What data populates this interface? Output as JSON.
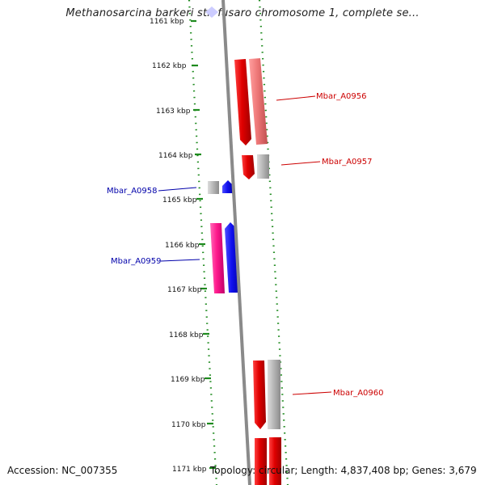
{
  "title": "Methanosarcina barkeri str. fusaro chromosome 1, complete se...",
  "accession": "Accession: NC_007355",
  "topology": "Topology: circular; Length: 4,837,408 bp; Genes: 3,679",
  "colors": {
    "backbone": "#8a8a8a",
    "ruler_dots": "#1e8a1e",
    "red": "#e00000",
    "light_red": "#ee7777",
    "gray": "#b4b4b4",
    "blue": "#1010ee",
    "pink": "#ff1a8c",
    "label_red": "#cc0000",
    "label_blue": "#0000aa"
  },
  "ticks": [
    "1161 kbp",
    "1162 kbp",
    "1163 kbp",
    "1164 kbp",
    "1165 kbp",
    "1166 kbp",
    "1167 kbp",
    "1168 kbp",
    "1169 kbp",
    "1170 kbp",
    "1171 kbp"
  ],
  "gene_labels": [
    {
      "text": "Mbar_A0956",
      "color": "label_red"
    },
    {
      "text": "Mbar_A0957",
      "color": "label_red"
    },
    {
      "text": "Mbar_A0958",
      "color": "label_blue"
    },
    {
      "text": "Mbar_A0959",
      "color": "label_blue"
    },
    {
      "text": "Mbar_A0960",
      "color": "label_red"
    }
  ]
}
